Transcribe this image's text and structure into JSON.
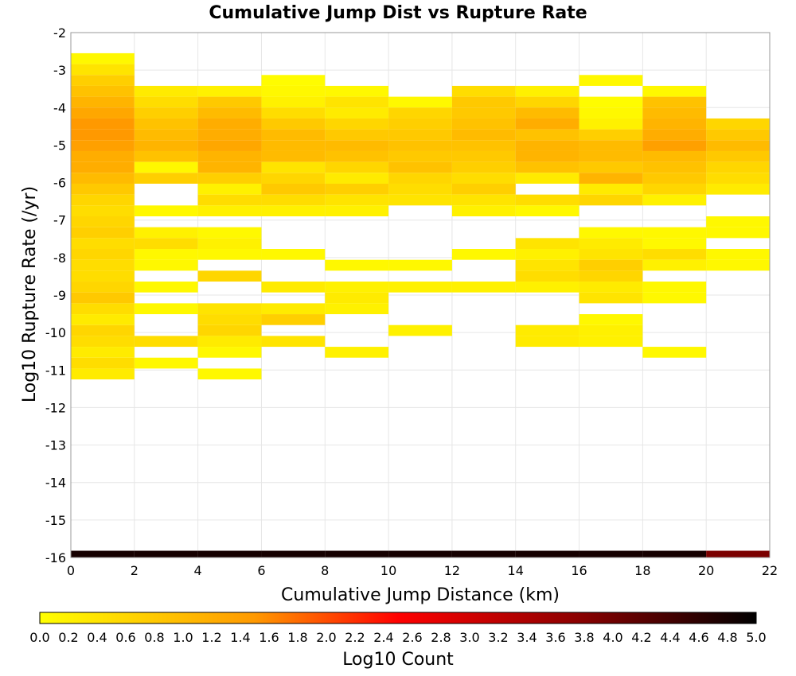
{
  "chart_data": {
    "type": "heatmap",
    "title": "Cumulative Jump Dist vs Rupture Rate",
    "xlabel": "Cumulative Jump Distance (km)",
    "ylabel": "Log10 Rupture Rate (/yr)",
    "colorbar_label": "Log10 Count",
    "xlim": [
      0,
      22
    ],
    "ylim": [
      -16,
      -2
    ],
    "x_ticks": [
      "0",
      "2",
      "4",
      "6",
      "8",
      "10",
      "12",
      "14",
      "16",
      "18",
      "20",
      "22"
    ],
    "y_ticks": [
      "-2",
      "-3",
      "-4",
      "-5",
      "-6",
      "-7",
      "-8",
      "-9",
      "-10",
      "-11",
      "-12",
      "-13",
      "-14",
      "-15",
      "-16"
    ],
    "colorbar_ticks": [
      "0.0",
      "0.2",
      "0.4",
      "0.6",
      "0.8",
      "1.0",
      "1.2",
      "1.4",
      "1.6",
      "1.8",
      "2.0",
      "2.2",
      "2.4",
      "2.6",
      "2.8",
      "3.0",
      "3.2",
      "3.4",
      "3.6",
      "3.8",
      "4.0",
      "4.2",
      "4.4",
      "4.6",
      "4.8",
      "5.0"
    ],
    "color_range": [
      0,
      5
    ],
    "grid": true,
    "x_bin_width": 2,
    "y_bin_height": 0.29,
    "x_bin_starts": [
      0,
      2,
      4,
      6,
      8,
      10,
      12,
      14,
      16,
      18,
      20
    ],
    "bottom_row": {
      "y_start": -16,
      "values": [
        4.8,
        4.8,
        4.8,
        4.8,
        4.8,
        4.8,
        4.8,
        4.8,
        4.8,
        4.8,
        3.9
      ]
    },
    "columns": [
      {
        "x_start": 0,
        "cells": [
          {
            "y": -2.84,
            "v": 0.1
          },
          {
            "y": -3.13,
            "v": 0.4
          },
          {
            "y": -3.42,
            "v": 0.7
          },
          {
            "y": -3.71,
            "v": 0.9
          },
          {
            "y": -4.0,
            "v": 1.1
          },
          {
            "y": -4.29,
            "v": 1.3
          },
          {
            "y": -4.58,
            "v": 1.5
          },
          {
            "y": -4.87,
            "v": 1.5
          },
          {
            "y": -5.16,
            "v": 1.4
          },
          {
            "y": -5.45,
            "v": 1.2
          },
          {
            "y": -5.74,
            "v": 1.2
          },
          {
            "y": -6.03,
            "v": 1.0
          },
          {
            "y": -6.32,
            "v": 0.8
          },
          {
            "y": -6.61,
            "v": 0.6
          },
          {
            "y": -6.9,
            "v": 0.5
          },
          {
            "y": -7.19,
            "v": 0.6
          },
          {
            "y": -7.48,
            "v": 0.7
          },
          {
            "y": -7.77,
            "v": 0.5
          },
          {
            "y": -8.06,
            "v": 0.6
          },
          {
            "y": -8.35,
            "v": 0.5
          },
          {
            "y": -8.64,
            "v": 0.5
          },
          {
            "y": -8.93,
            "v": 0.6
          },
          {
            "y": -9.22,
            "v": 0.8
          },
          {
            "y": -9.51,
            "v": 0.5
          },
          {
            "y": -9.8,
            "v": 0.3
          },
          {
            "y": -10.09,
            "v": 0.6
          },
          {
            "y": -10.38,
            "v": 0.5
          },
          {
            "y": -10.67,
            "v": 0.3
          },
          {
            "y": -10.96,
            "v": 0.5
          },
          {
            "y": -11.25,
            "v": 0.3
          }
        ]
      },
      {
        "x_start": 2,
        "cells": [
          {
            "y": -3.71,
            "v": 0.3
          },
          {
            "y": -4.0,
            "v": 0.5
          },
          {
            "y": -4.29,
            "v": 0.7
          },
          {
            "y": -4.58,
            "v": 0.9
          },
          {
            "y": -4.87,
            "v": 1.0
          },
          {
            "y": -5.16,
            "v": 1.1
          },
          {
            "y": -5.45,
            "v": 0.9
          },
          {
            "y": -5.74,
            "v": 0.1
          },
          {
            "y": -6.03,
            "v": 0.7
          },
          {
            "y": -6.9,
            "v": 0.1
          },
          {
            "y": -7.48,
            "v": 0.2
          },
          {
            "y": -7.77,
            "v": 0.5
          },
          {
            "y": -8.06,
            "v": 0.1
          },
          {
            "y": -8.35,
            "v": 0.1
          },
          {
            "y": -8.93,
            "v": 0.1
          },
          {
            "y": -9.51,
            "v": 0.1
          },
          {
            "y": -10.38,
            "v": 0.5
          },
          {
            "y": -10.96,
            "v": 0.1
          }
        ]
      },
      {
        "x_start": 4,
        "cells": [
          {
            "y": -3.71,
            "v": 0.2
          },
          {
            "y": -4.0,
            "v": 0.8
          },
          {
            "y": -4.29,
            "v": 1.0
          },
          {
            "y": -4.58,
            "v": 1.2
          },
          {
            "y": -4.87,
            "v": 1.2
          },
          {
            "y": -5.16,
            "v": 1.3
          },
          {
            "y": -5.45,
            "v": 1.1
          },
          {
            "y": -5.74,
            "v": 1.1
          },
          {
            "y": -6.03,
            "v": 0.7
          },
          {
            "y": -6.32,
            "v": 0.2
          },
          {
            "y": -6.61,
            "v": 0.5
          },
          {
            "y": -6.9,
            "v": 0.2
          },
          {
            "y": -7.48,
            "v": 0.1
          },
          {
            "y": -7.77,
            "v": 0.2
          },
          {
            "y": -8.06,
            "v": 0.1
          },
          {
            "y": -8.64,
            "v": 0.6
          },
          {
            "y": -9.51,
            "v": 0.4
          },
          {
            "y": -9.8,
            "v": 0.5
          },
          {
            "y": -10.09,
            "v": 0.6
          },
          {
            "y": -10.38,
            "v": 0.3
          },
          {
            "y": -10.67,
            "v": 0.1
          },
          {
            "y": -11.25,
            "v": 0.1
          }
        ]
      },
      {
        "x_start": 6,
        "cells": [
          {
            "y": -3.42,
            "v": 0.05
          },
          {
            "y": -3.71,
            "v": 0.1
          },
          {
            "y": -4.0,
            "v": 0.2
          },
          {
            "y": -4.29,
            "v": 0.5
          },
          {
            "y": -4.58,
            "v": 0.8
          },
          {
            "y": -4.87,
            "v": 1.0
          },
          {
            "y": -5.16,
            "v": 1.0
          },
          {
            "y": -5.45,
            "v": 1.0
          },
          {
            "y": -5.74,
            "v": 0.4
          },
          {
            "y": -6.03,
            "v": 0.6
          },
          {
            "y": -6.32,
            "v": 0.8
          },
          {
            "y": -6.61,
            "v": 0.5
          },
          {
            "y": -6.9,
            "v": 0.2
          },
          {
            "y": -8.06,
            "v": 0.1
          },
          {
            "y": -8.93,
            "v": 0.3
          },
          {
            "y": -9.51,
            "v": 0.3
          },
          {
            "y": -9.8,
            "v": 0.7
          },
          {
            "y": -10.38,
            "v": 0.4
          }
        ]
      },
      {
        "x_start": 8,
        "cells": [
          {
            "y": -3.71,
            "v": 0.1
          },
          {
            "y": -4.0,
            "v": 0.4
          },
          {
            "y": -4.29,
            "v": 0.3
          },
          {
            "y": -4.58,
            "v": 0.6
          },
          {
            "y": -4.87,
            "v": 0.8
          },
          {
            "y": -5.16,
            "v": 1.0
          },
          {
            "y": -5.45,
            "v": 0.9
          },
          {
            "y": -5.74,
            "v": 0.6
          },
          {
            "y": -6.03,
            "v": 0.3
          },
          {
            "y": -6.32,
            "v": 0.7
          },
          {
            "y": -6.61,
            "v": 0.4
          },
          {
            "y": -6.9,
            "v": 0.2
          },
          {
            "y": -8.35,
            "v": 0.1
          },
          {
            "y": -8.93,
            "v": 0.2
          },
          {
            "y": -9.22,
            "v": 0.3
          },
          {
            "y": -9.51,
            "v": 0.2
          },
          {
            "y": -10.67,
            "v": 0.2
          }
        ]
      },
      {
        "x_start": 10,
        "cells": [
          {
            "y": -4.0,
            "v": 0.1
          },
          {
            "y": -4.29,
            "v": 0.6
          },
          {
            "y": -4.58,
            "v": 0.7
          },
          {
            "y": -4.87,
            "v": 0.8
          },
          {
            "y": -5.16,
            "v": 0.9
          },
          {
            "y": -5.45,
            "v": 0.8
          },
          {
            "y": -5.74,
            "v": 0.9
          },
          {
            "y": -6.03,
            "v": 0.6
          },
          {
            "y": -6.32,
            "v": 0.5
          },
          {
            "y": -6.61,
            "v": 0.4
          },
          {
            "y": -8.35,
            "v": 0.1
          },
          {
            "y": -8.93,
            "v": 0.2
          },
          {
            "y": -10.09,
            "v": 0.2
          }
        ]
      },
      {
        "x_start": 12,
        "cells": [
          {
            "y": -3.71,
            "v": 0.5
          },
          {
            "y": -4.0,
            "v": 0.8
          },
          {
            "y": -4.29,
            "v": 0.8
          },
          {
            "y": -4.58,
            "v": 0.9
          },
          {
            "y": -4.87,
            "v": 1.0
          },
          {
            "y": -5.16,
            "v": 0.9
          },
          {
            "y": -5.45,
            "v": 0.8
          },
          {
            "y": -5.74,
            "v": 0.7
          },
          {
            "y": -6.03,
            "v": 0.5
          },
          {
            "y": -6.32,
            "v": 0.7
          },
          {
            "y": -6.61,
            "v": 0.4
          },
          {
            "y": -6.9,
            "v": 0.2
          },
          {
            "y": -8.06,
            "v": 0.1
          },
          {
            "y": -8.93,
            "v": 0.2
          }
        ]
      },
      {
        "x_start": 14,
        "cells": [
          {
            "y": -3.71,
            "v": 0.2
          },
          {
            "y": -4.0,
            "v": 0.6
          },
          {
            "y": -4.29,
            "v": 1.0
          },
          {
            "y": -4.58,
            "v": 1.2
          },
          {
            "y": -4.87,
            "v": 0.9
          },
          {
            "y": -5.16,
            "v": 1.1
          },
          {
            "y": -5.45,
            "v": 1.1
          },
          {
            "y": -5.74,
            "v": 0.9
          },
          {
            "y": -6.03,
            "v": 0.3
          },
          {
            "y": -6.61,
            "v": 0.5
          },
          {
            "y": -6.9,
            "v": 0.1
          },
          {
            "y": -7.77,
            "v": 0.4
          },
          {
            "y": -8.06,
            "v": 0.2
          },
          {
            "y": -8.35,
            "v": 0.4
          },
          {
            "y": -8.64,
            "v": 0.5
          },
          {
            "y": -8.93,
            "v": 0.2
          },
          {
            "y": -10.09,
            "v": 0.3
          },
          {
            "y": -10.38,
            "v": 0.3
          }
        ]
      },
      {
        "x_start": 16,
        "cells": [
          {
            "y": -3.42,
            "v": 0.1
          },
          {
            "y": -4.0,
            "v": 0.05
          },
          {
            "y": -4.29,
            "v": 0.1
          },
          {
            "y": -4.58,
            "v": 0.2
          },
          {
            "y": -4.87,
            "v": 0.7
          },
          {
            "y": -5.16,
            "v": 1.0
          },
          {
            "y": -5.45,
            "v": 1.0
          },
          {
            "y": -5.74,
            "v": 0.8
          },
          {
            "y": -6.03,
            "v": 1.1
          },
          {
            "y": -6.32,
            "v": 0.3
          },
          {
            "y": -6.61,
            "v": 0.6
          },
          {
            "y": -7.48,
            "v": 0.1
          },
          {
            "y": -7.77,
            "v": 0.3
          },
          {
            "y": -8.06,
            "v": 0.4
          },
          {
            "y": -8.35,
            "v": 0.7
          },
          {
            "y": -8.64,
            "v": 0.6
          },
          {
            "y": -8.93,
            "v": 0.3
          },
          {
            "y": -9.22,
            "v": 0.4
          },
          {
            "y": -9.8,
            "v": 0.1
          },
          {
            "y": -10.09,
            "v": 0.2
          },
          {
            "y": -10.38,
            "v": 0.2
          }
        ]
      },
      {
        "x_start": 18,
        "cells": [
          {
            "y": -3.71,
            "v": 0.1
          },
          {
            "y": -4.0,
            "v": 0.9
          },
          {
            "y": -4.29,
            "v": 1.0
          },
          {
            "y": -4.58,
            "v": 1.1
          },
          {
            "y": -4.87,
            "v": 1.2
          },
          {
            "y": -5.16,
            "v": 1.4
          },
          {
            "y": -5.45,
            "v": 1.0
          },
          {
            "y": -5.74,
            "v": 0.9
          },
          {
            "y": -6.03,
            "v": 0.8
          },
          {
            "y": -6.32,
            "v": 0.6
          },
          {
            "y": -6.61,
            "v": 0.2
          },
          {
            "y": -7.48,
            "v": 0.1
          },
          {
            "y": -7.77,
            "v": 0.1
          },
          {
            "y": -8.06,
            "v": 0.5
          },
          {
            "y": -8.35,
            "v": 0.2
          },
          {
            "y": -8.93,
            "v": 0.1
          },
          {
            "y": -9.22,
            "v": 0.1
          },
          {
            "y": -10.67,
            "v": 0.1
          }
        ]
      },
      {
        "x_start": 20,
        "cells": [
          {
            "y": -4.58,
            "v": 0.6
          },
          {
            "y": -4.87,
            "v": 0.8
          },
          {
            "y": -5.16,
            "v": 1.0
          },
          {
            "y": -5.45,
            "v": 0.8
          },
          {
            "y": -5.74,
            "v": 0.6
          },
          {
            "y": -6.03,
            "v": 0.5
          },
          {
            "y": -6.32,
            "v": 0.3
          },
          {
            "y": -7.19,
            "v": 0.1
          },
          {
            "y": -7.48,
            "v": 0.1
          },
          {
            "y": -8.06,
            "v": 0.1
          },
          {
            "y": -8.35,
            "v": 0.1
          }
        ]
      }
    ]
  }
}
